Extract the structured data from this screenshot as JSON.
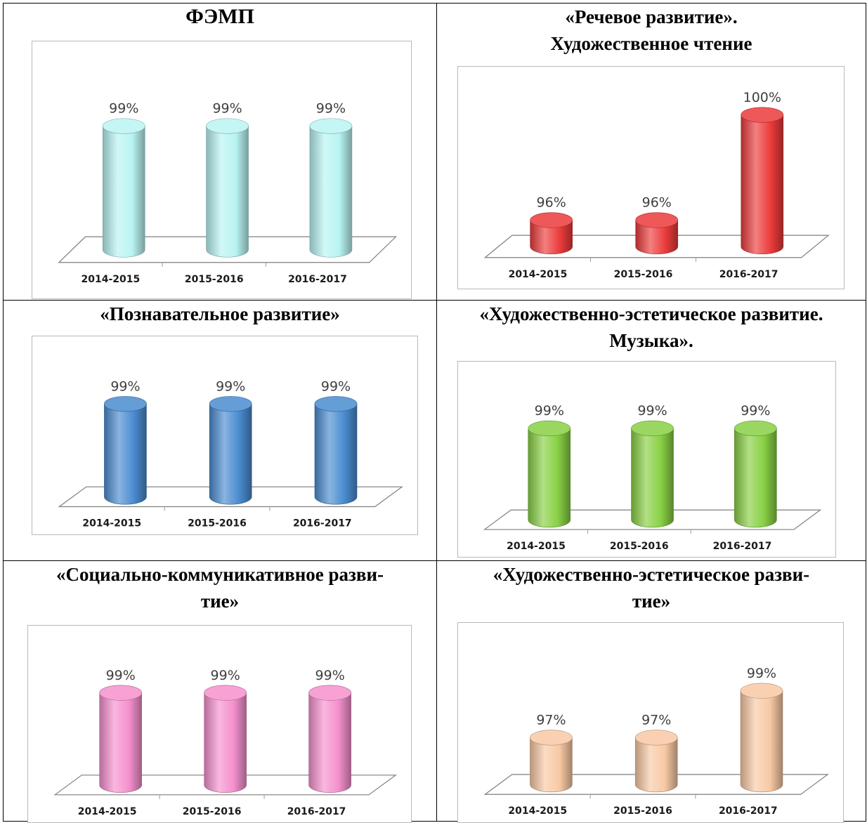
{
  "chart_data": [
    {
      "type": "bar",
      "title": "ФЭМП",
      "categories": [
        "2014-2015",
        "2015-2016",
        "2016-2017"
      ],
      "values": [
        99,
        99,
        99
      ],
      "labels": [
        "99%",
        "99%",
        "99%"
      ],
      "color": "#b8f4f2",
      "ylim": [
        95,
        100
      ],
      "grid": false
    },
    {
      "type": "bar",
      "title": "«Речевое развитие».\nХудожественное чтение",
      "categories": [
        "2014-2015",
        "2015-2016",
        "2016-2017"
      ],
      "values": [
        96,
        96,
        100
      ],
      "labels": [
        "96%",
        "96%",
        "100%"
      ],
      "color": "#ec3b3b",
      "ylim": [
        95,
        100
      ],
      "grid": false
    },
    {
      "type": "bar",
      "title": "«Познавательное развитие»",
      "categories": [
        "2014-2015",
        "2015-2016",
        "2016-2017"
      ],
      "values": [
        99,
        99,
        99
      ],
      "labels": [
        "99%",
        "99%",
        "99%"
      ],
      "color": "#4a8cd0",
      "ylim": [
        95,
        100
      ],
      "grid": false
    },
    {
      "type": "bar",
      "title": "«Художественно-эстетическое развитие.\nМузыка».",
      "categories": [
        "2014-2015",
        "2015-2016",
        "2016-2017"
      ],
      "values": [
        99,
        99,
        99
      ],
      "labels": [
        "99%",
        "99%",
        "99%"
      ],
      "color": "#88d044",
      "ylim": [
        95,
        100
      ],
      "grid": false
    },
    {
      "type": "bar",
      "title": "«Социально-коммуникативное разви-\nтие»",
      "categories": [
        "2014-2015",
        "2015-2016",
        "2016-2017"
      ],
      "values": [
        99,
        99,
        99
      ],
      "labels": [
        "99%",
        "99%",
        "99%"
      ],
      "color": "#f590ce",
      "ylim": [
        95,
        100
      ],
      "grid": false
    },
    {
      "type": "bar",
      "title": "«Художественно-эстетическое разви-\nтие»",
      "categories": [
        "2014-2015",
        "2015-2016",
        "2016-2017"
      ],
      "values": [
        97,
        97,
        99
      ],
      "labels": [
        "97%",
        "97%",
        "99%"
      ],
      "color": "#f8c9a4",
      "ylim": [
        95,
        100
      ],
      "grid": false
    }
  ]
}
